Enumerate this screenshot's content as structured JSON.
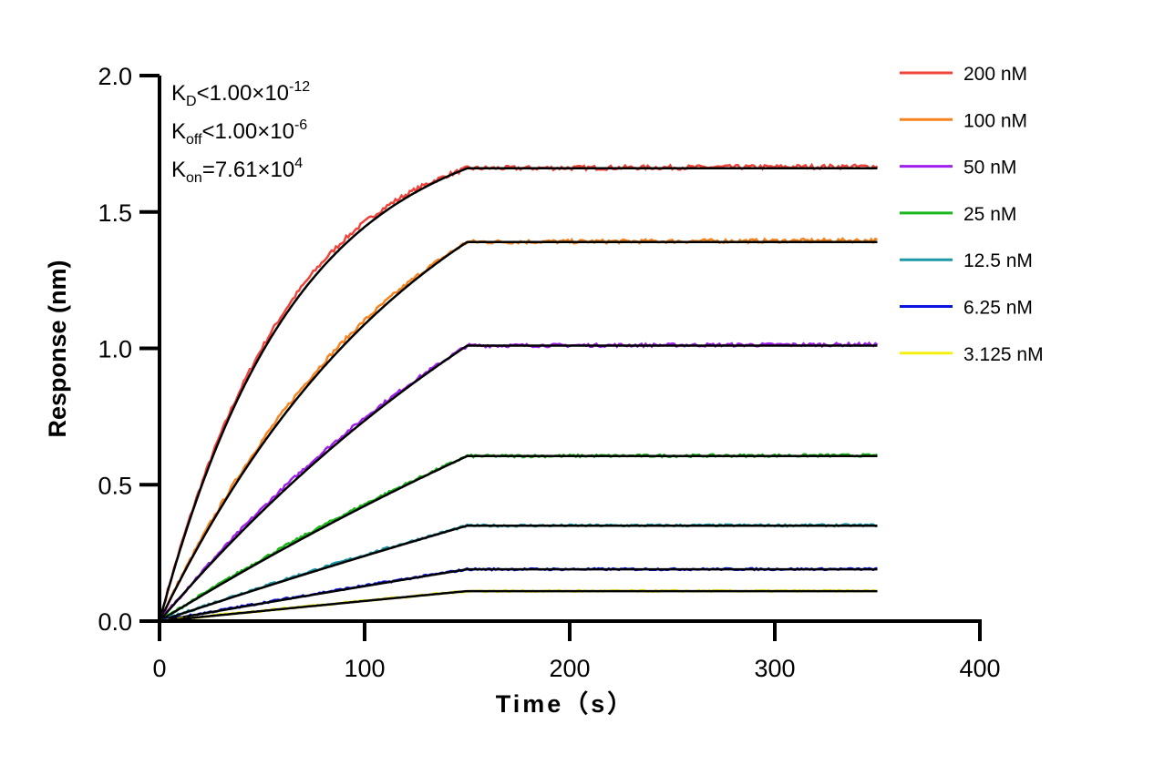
{
  "chart_data": {
    "type": "line",
    "xlabel": "Time（s）",
    "ylabel": "Response (nm)",
    "xlim": [
      0,
      400
    ],
    "ylim": [
      0,
      2.0
    ],
    "xticks": [
      "0",
      "100",
      "200",
      "300",
      "400"
    ],
    "yticks": [
      "0.0",
      "0.5",
      "1.0",
      "1.5",
      "2.0"
    ],
    "grid": false,
    "legend_placement": "right",
    "association_end_s": 150,
    "data_end_s": 350,
    "fit_color": "#000000",
    "annotations": {
      "kd": {
        "base": "K",
        "sub": "D",
        "rel": "<1.00×10",
        "exp": "-12"
      },
      "koff": {
        "base": "K",
        "sub": "off",
        "rel": "<1.00×10",
        "exp": "-6"
      },
      "kon": {
        "base": "K",
        "sub": "on",
        "rel": "=7.61×10",
        "exp": "4"
      }
    },
    "kon_value": 76100,
    "series": [
      {
        "name": "200 nM",
        "conc_nM": 200,
        "plateau": 1.66,
        "color": "#f0433a"
      },
      {
        "name": "100 nM",
        "conc_nM": 100,
        "plateau": 1.39,
        "color": "#f7831e"
      },
      {
        "name": "50 nM",
        "conc_nM": 50,
        "plateau": 1.01,
        "color": "#a020f0"
      },
      {
        "name": "25 nM",
        "conc_nM": 25,
        "plateau": 0.605,
        "color": "#18b818"
      },
      {
        "name": "12.5 nM",
        "conc_nM": 12.5,
        "plateau": 0.35,
        "color": "#1a98a8"
      },
      {
        "name": "6.25 nM",
        "conc_nM": 6.25,
        "plateau": 0.19,
        "color": "#0a14e0"
      },
      {
        "name": "3.125 nM",
        "conc_nM": 3.125,
        "plateau": 0.11,
        "color": "#f5f010"
      }
    ]
  }
}
